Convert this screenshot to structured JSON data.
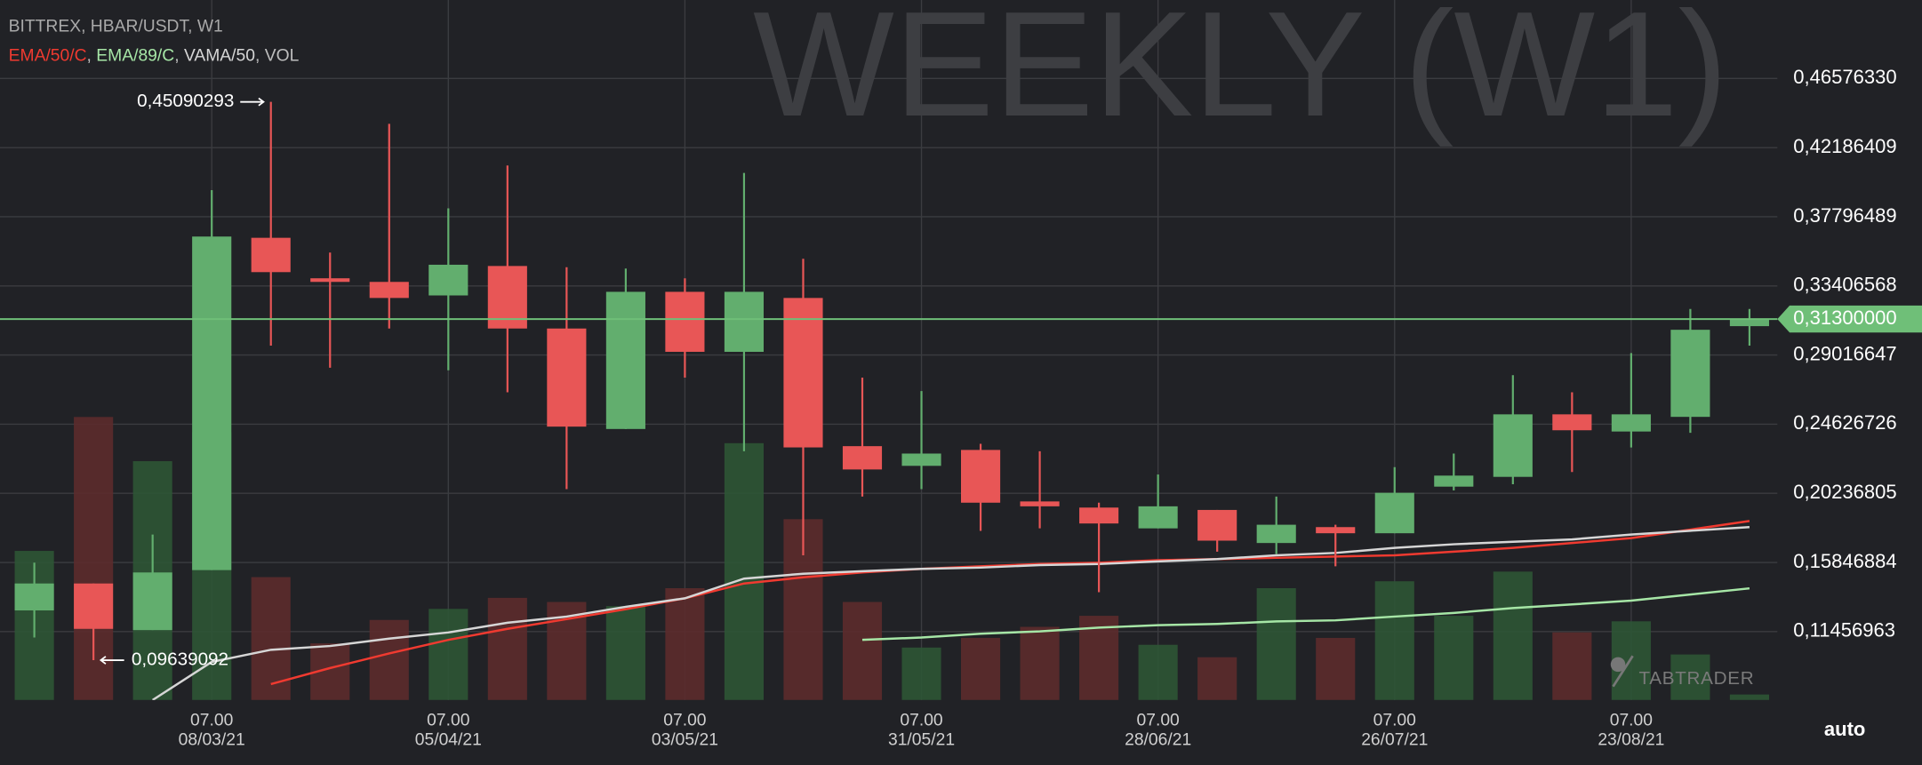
{
  "chart_data": {
    "type": "candlestick",
    "title": "BITTREX, HBAR/USDT, W1",
    "watermark": "WEEKLY (W1)",
    "brand": "TABTRADER",
    "scale_mode": "auto",
    "legend_separator": ", ",
    "categories": [
      null,
      null,
      null,
      "08/03/21",
      null,
      null,
      null,
      "05/04/21",
      null,
      null,
      null,
      "03/05/21",
      null,
      null,
      null,
      "31/05/21",
      null,
      null,
      null,
      "28/06/21",
      null,
      null,
      null,
      "26/07/21",
      null,
      null,
      null,
      "23/08/21",
      null,
      null
    ],
    "x_time_labels": [
      null,
      null,
      null,
      "07.00",
      null,
      null,
      null,
      "07.00",
      null,
      null,
      null,
      "07.00",
      null,
      null,
      null,
      "07.00",
      null,
      null,
      null,
      "07.00",
      null,
      null,
      null,
      "07.00",
      null,
      null,
      null,
      "07.00",
      null,
      null
    ],
    "open": [
      0.128,
      0.1451,
      0.1155,
      0.1536,
      0.3646,
      0.3389,
      0.3366,
      0.328,
      0.3467,
      0.307,
      0.2432,
      0.3303,
      0.2922,
      0.3264,
      0.2323,
      0.2198,
      0.2299,
      0.1972,
      0.1933,
      0.1801,
      0.1918,
      0.1708,
      0.1809,
      0.177,
      0.2066,
      0.2128,
      0.2525,
      0.2416,
      0.2509,
      0.3085
    ],
    "high": [
      0.1583,
      0.1451,
      0.1762,
      0.3949,
      0.45090293,
      0.3552,
      0.437,
      0.3833,
      0.4105,
      0.3459,
      0.3451,
      0.3389,
      0.4058,
      0.3513,
      0.2758,
      0.2673,
      0.2338,
      0.2291,
      0.1964,
      0.2143,
      0.1918,
      0.2003,
      0.1824,
      0.219,
      0.2276,
      0.2774,
      0.2665,
      0.2914,
      0.3194,
      0.3194
    ],
    "low": [
      0.1108,
      0.09639092,
      0.1155,
      0.1536,
      0.2961,
      0.2821,
      0.307,
      0.2805,
      0.2665,
      0.205,
      0.2432,
      0.2758,
      0.2291,
      0.163,
      0.2003,
      0.205,
      0.1785,
      0.1801,
      0.1396,
      0.1801,
      0.1653,
      0.1638,
      0.156,
      0.177,
      0.2042,
      0.2081,
      0.2159,
      0.2315,
      0.2408,
      0.2961
    ],
    "close": [
      0.1451,
      0.1163,
      0.1521,
      0.3654,
      0.3428,
      0.3366,
      0.3264,
      0.3475,
      0.307,
      0.2447,
      0.3303,
      0.2922,
      0.3303,
      0.2315,
      0.2175,
      0.2276,
      0.1964,
      0.1941,
      0.1832,
      0.1941,
      0.1723,
      0.1824,
      0.177,
      0.2027,
      0.2136,
      0.2525,
      0.2424,
      0.2525,
      0.3062,
      0.313
    ],
    "up_color": "#62ae6e",
    "down_color": "#e85656",
    "volume": {
      "name": "VOL",
      "color": "#bdbdbd",
      "up_color": "#2d5535",
      "down_color": "#5c2b2c",
      "values": [
        108,
        205,
        173,
        194,
        89,
        41,
        58,
        66,
        74,
        71,
        68,
        81,
        186,
        131,
        71,
        38,
        45,
        53,
        61,
        40,
        31,
        81,
        45,
        86,
        61,
        93,
        49,
        57,
        33,
        4
      ]
    },
    "volume_lim": [
      0,
      507
    ],
    "series": [
      {
        "name": "EMA/50/C",
        "color": "#f03a30",
        "values": [
          null,
          null,
          null,
          null,
          0.0812,
          0.0914,
          0.1007,
          0.1093,
          0.1163,
          0.1225,
          0.1288,
          0.1357,
          0.1451,
          0.149,
          0.1521,
          0.1544,
          0.156,
          0.1575,
          0.1583,
          0.1599,
          0.1606,
          0.1614,
          0.1622,
          0.163,
          0.1653,
          0.1677,
          0.1708,
          0.1739,
          0.1793,
          0.1848
        ]
      },
      {
        "name": "EMA/89/C",
        "color": "#a6e6a6",
        "values": [
          null,
          null,
          null,
          null,
          null,
          null,
          null,
          null,
          null,
          null,
          null,
          null,
          null,
          null,
          0.1093,
          0.1108,
          0.1132,
          0.1147,
          0.1171,
          0.1186,
          0.1194,
          0.121,
          0.1217,
          0.1241,
          0.1264,
          0.1295,
          0.1318,
          0.1342,
          0.1381,
          0.142
        ]
      },
      {
        "name": "VAMA/50",
        "color": "#d6d6d6",
        "values": [
          null,
          null,
          0.0711,
          0.0953,
          0.103,
          0.1054,
          0.1101,
          0.114,
          0.1202,
          0.1241,
          0.1303,
          0.1357,
          0.1482,
          0.1513,
          0.1529,
          0.1544,
          0.1552,
          0.1568,
          0.1575,
          0.1591,
          0.1606,
          0.163,
          0.1645,
          0.1677,
          0.17,
          0.1716,
          0.1731,
          0.1762,
          0.1786,
          0.1809
        ]
      }
    ],
    "ylim": [
      0.0711,
      0.5156
    ],
    "yticks": [
      {
        "value": 0.11456963,
        "label": "0,11456963"
      },
      {
        "value": 0.15846884,
        "label": "0,15846884"
      },
      {
        "value": 0.20236805,
        "label": "0,20236805"
      },
      {
        "value": 0.24626726,
        "label": "0,24626726"
      },
      {
        "value": 0.29016647,
        "label": "0,29016647"
      },
      {
        "value": 0.33406568,
        "label": "0,33406568"
      },
      {
        "value": 0.37796489,
        "label": "0,37796489"
      },
      {
        "value": 0.42186409,
        "label": "0,42186409"
      },
      {
        "value": 0.4657633,
        "label": "0,46576330"
      }
    ],
    "grid": true,
    "last_price": {
      "value": 0.313,
      "label": "0,31300000",
      "color": "#6fbf78"
    },
    "high_label": "0,45090293",
    "low_label": "0,09639092"
  }
}
